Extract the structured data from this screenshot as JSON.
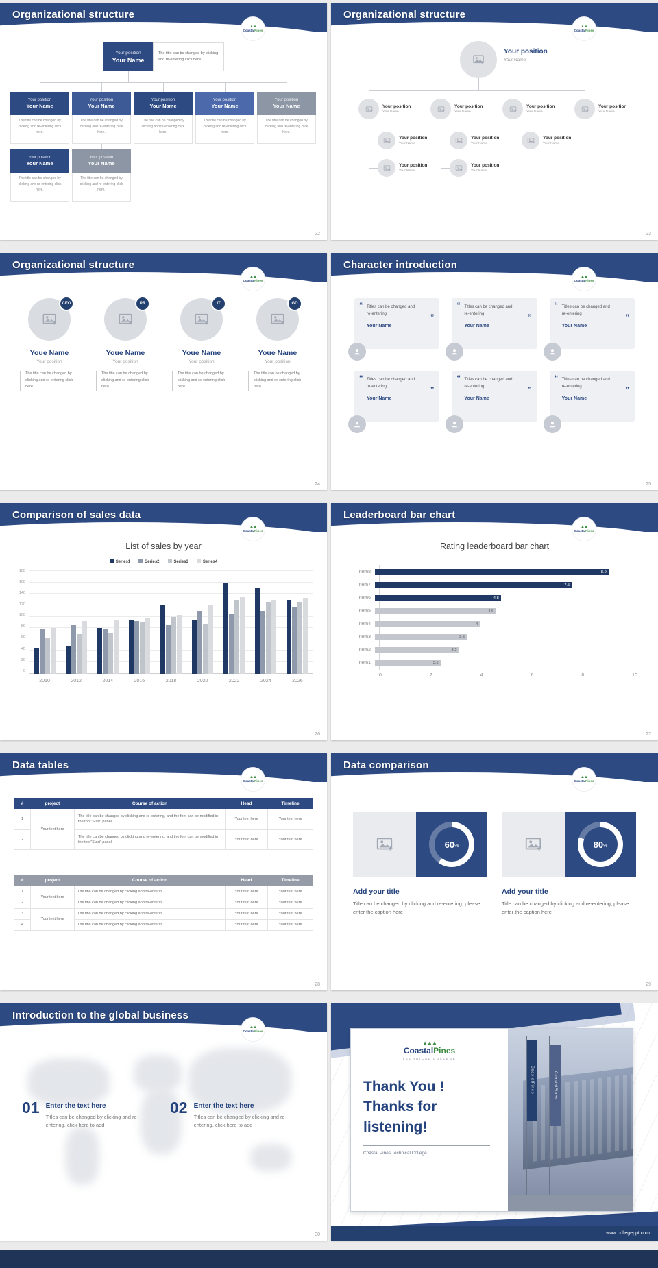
{
  "colors": {
    "accent_navy": "#2d4a82",
    "dark_navy": "#24406e",
    "logo_green": "#3f8d44",
    "bar_gray": "#c3c7cd"
  },
  "common": {
    "logo_coastal": "Coastal",
    "logo_pines": "Pines",
    "percent_sign": "%"
  },
  "slides": [
    {
      "title": "Organizational structure",
      "page_number": "22",
      "root": {
        "position": "Your position",
        "name": "Your Name"
      },
      "root_note": "The title can be changed by clicking and re-entering click here",
      "card": {
        "position": "Your position",
        "name": "Your Name",
        "desc": "The title can be changed by clicking and re-entering click here."
      }
    },
    {
      "title": "Organizational structure",
      "page_number": "23",
      "root": {
        "position": "Your position",
        "name": "Your Name"
      },
      "node": {
        "position": "Your position",
        "name": "Your Name"
      }
    },
    {
      "title": "Organizational structure",
      "page_number": "24",
      "badges": [
        "CEO",
        "PR",
        "IT",
        "GD"
      ],
      "person": {
        "name": "Youe Name",
        "position": "Your position",
        "desc": "The title can be changed by clicking and re-entering click here"
      }
    },
    {
      "title": "Character introduction",
      "page_number": "25",
      "card": {
        "quote_open": "“",
        "quote_close": "”",
        "text": "Titles can be changed and re-entering",
        "name": "Your Name"
      }
    },
    {
      "title": "Comparison of sales data",
      "page_number": "26"
    },
    {
      "title": "Leaderboard bar chart",
      "page_number": "27"
    },
    {
      "title": "Data tables",
      "page_number": "28",
      "columns": [
        "#",
        "project",
        "Course of action",
        "Head",
        "Timeline"
      ],
      "table1": {
        "row_numbers": [
          "1",
          "2"
        ],
        "project": "Your text here",
        "action": "The title can be changed by clicking and re-entering, and the font can be modified in the top \"Start\" panel",
        "head": "Your text here",
        "timeline": "Your text here"
      },
      "table2": {
        "row_numbers": [
          "1",
          "2",
          "3",
          "4"
        ],
        "project": "Your text here",
        "action": "The title can be changed by clicking and re-enterin",
        "head": "Your text here",
        "timeline": "Your text here"
      }
    },
    {
      "title": "Data comparison",
      "page_number": "29",
      "panels": [
        {
          "percent": 60,
          "heading": "Add your title",
          "caption": "Title can be changed by clicking and re-entering, please enter the caption here"
        },
        {
          "percent": 80,
          "heading": "Add your title",
          "caption": "Title can be changed by clicking and re-entering, please enter the caption here"
        }
      ]
    },
    {
      "title": "Introduction to the global business",
      "page_number": "30",
      "items": [
        {
          "number": "01",
          "heading": "Enter the text here",
          "body": "Titles can be changed by clicking and re-entering, click here to add"
        },
        {
          "number": "02",
          "heading": "Enter the text here",
          "body": "Titles can be changed by clicking and re-entering, click here to add"
        }
      ]
    },
    {
      "thank_line1": "Thank You !",
      "thank_line2": "Thanks for listening!",
      "subtitle": "Coastal Pines Technical College",
      "logo_coastal": "Coastal",
      "logo_pines": "Pines",
      "logo_subtext": "TECHNICAL COLLEGE",
      "banner_text": "CoastalPines",
      "footer_url": "www.collegeppt.com"
    }
  ],
  "chart_data": [
    {
      "type": "bar",
      "title": "List of sales by year",
      "categories": [
        "2010",
        "2012",
        "2014",
        "2016",
        "2018",
        "2020",
        "2022",
        "2024",
        "2026"
      ],
      "series": [
        {
          "name": "Series1",
          "color": "#1f3864",
          "values": [
            45,
            48,
            80,
            95,
            120,
            95,
            160,
            150,
            128
          ]
        },
        {
          "name": "Series2",
          "color": "#8e99ab",
          "values": [
            78,
            85,
            78,
            93,
            85,
            110,
            105,
            110,
            118
          ]
        },
        {
          "name": "Series3",
          "color": "#c0c4cb",
          "values": [
            62,
            70,
            72,
            90,
            100,
            88,
            130,
            125,
            125
          ]
        },
        {
          "name": "Series4",
          "color": "#d9dbde",
          "values": [
            80,
            92,
            95,
            98,
            103,
            120,
            135,
            130,
            132
          ]
        }
      ],
      "ylim": [
        0,
        180
      ],
      "ytick_step": 20,
      "legend_position": "top",
      "grid": true
    },
    {
      "type": "bar-horizontal",
      "title": "Rating leaderboard bar chart",
      "categories": [
        "Item8",
        "Item7",
        "Item6",
        "Item5",
        "Item4",
        "Item3",
        "Item2",
        "Item1"
      ],
      "values": [
        8.9,
        7.5,
        4.8,
        4.6,
        4,
        3.5,
        3.2,
        2.5
      ],
      "bar_colors": [
        "#1f3864",
        "#1f3864",
        "#1f3864",
        "#c3c7cd",
        "#c3c7cd",
        "#c3c7cd",
        "#c3c7cd",
        "#c3c7cd"
      ],
      "xlim": [
        0,
        10
      ],
      "xticks": [
        0,
        2,
        4,
        6,
        8,
        10
      ],
      "grid": false
    }
  ]
}
